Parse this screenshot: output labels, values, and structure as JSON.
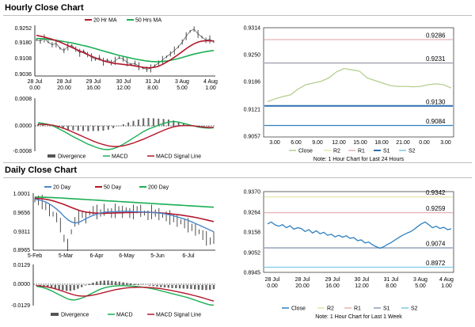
{
  "sections": {
    "hourly_title": "Hourly Close Chart",
    "daily_title": "Daily Close Chart"
  },
  "colors": {
    "ma_red": "#b3172b",
    "ma_green": "#1aaf54",
    "blue20": "#4a86c8",
    "close_light_green": "#b5cf8f",
    "close_blue": "#2e80c0",
    "r2": "#e6e6b0",
    "r1": "#e7b2b2",
    "s1": "#2f6fb0",
    "s2": "#7ec9e6",
    "midline": "#8a9bb5"
  },
  "chart_data": [
    {
      "id": "hourly_price",
      "type": "line",
      "legend": [
        "20 Hr MA",
        "50 Hrs MA"
      ],
      "yticks": [
        "0.9252",
        "0.9180",
        "0.9108",
        "0.9036"
      ],
      "ylim": [
        0.9036,
        0.9252
      ],
      "xticks": [
        [
          "28 Jul",
          "0.00"
        ],
        [
          "28 Jul",
          "20.00"
        ],
        [
          "29 Jul",
          "16.00"
        ],
        [
          "30 Jul",
          "12.00"
        ],
        [
          "31 Jul",
          "8.00"
        ],
        [
          "3 Aug",
          "5.00"
        ],
        [
          "4 Aug",
          "1.00"
        ]
      ],
      "price": [
        0.9198,
        0.9192,
        0.9204,
        0.9188,
        0.9176,
        0.9182,
        0.916,
        0.915,
        0.9168,
        0.9172,
        0.9156,
        0.914,
        0.9148,
        0.9132,
        0.912,
        0.911,
        0.9118,
        0.91,
        0.9108,
        0.9096,
        0.9104,
        0.9118,
        0.9112,
        0.9098,
        0.9088,
        0.9092,
        0.908,
        0.9072,
        0.9066,
        0.907,
        0.9082,
        0.9094,
        0.9108,
        0.9122,
        0.9135,
        0.915,
        0.9166,
        0.9188,
        0.9214,
        0.9236,
        0.9246,
        0.9224,
        0.921,
        0.9196,
        0.92,
        0.919
      ],
      "ma20": [
        0.9218,
        0.9214,
        0.921,
        0.9205,
        0.92,
        0.9194,
        0.9188,
        0.918,
        0.9172,
        0.9164,
        0.9156,
        0.9148,
        0.914,
        0.9132,
        0.9124,
        0.9117,
        0.911,
        0.9104,
        0.9099,
        0.9095,
        0.9092,
        0.909,
        0.9088,
        0.9086,
        0.9084,
        0.9081,
        0.9078,
        0.9075,
        0.9073,
        0.9073,
        0.9075,
        0.908,
        0.9088,
        0.9098,
        0.9108,
        0.912,
        0.9132,
        0.9145,
        0.9158,
        0.917,
        0.918,
        0.9188,
        0.9192,
        0.9194,
        0.9194,
        0.9192
      ],
      "ma50": [
        0.9204,
        0.9203,
        0.9202,
        0.92,
        0.9198,
        0.9196,
        0.9193,
        0.919,
        0.9187,
        0.9184,
        0.918,
        0.9176,
        0.9172,
        0.9168,
        0.9163,
        0.9158,
        0.9153,
        0.9148,
        0.9143,
        0.9138,
        0.9133,
        0.9128,
        0.9124,
        0.912,
        0.9116,
        0.9112,
        0.9109,
        0.9106,
        0.9103,
        0.9101,
        0.91,
        0.91,
        0.9101,
        0.9103,
        0.9106,
        0.911,
        0.9114,
        0.9119,
        0.9124,
        0.9129,
        0.9134,
        0.9138,
        0.9142,
        0.9145,
        0.9148,
        0.915
      ]
    },
    {
      "id": "hourly_macd",
      "type": "line",
      "legend": [
        "Divergence",
        "MACD",
        "MACD Signal Line"
      ],
      "yticks": [
        "0.0008",
        "0.0000",
        "-0.0008"
      ],
      "ylim": [
        -0.0008,
        0.0008
      ],
      "macd": [
        0.0001,
        8e-05,
        5e-05,
        0.0,
        -8e-05,
        -0.00016,
        -0.00025,
        -0.00034,
        -0.00042,
        -0.0005,
        -0.00058,
        -0.00064,
        -0.0007,
        -0.00074,
        -0.00075,
        -0.00072,
        -0.00066,
        -0.00058,
        -0.00048,
        -0.00038,
        -0.00028,
        -0.00018,
        -0.0001,
        -4e-05,
        2e-05,
        8e-05,
        0.00012,
        0.00014,
        0.00012,
        8e-05,
        4e-05,
        0.0,
        -4e-05,
        -6e-05,
        -7e-05,
        -6e-05
      ],
      "signal": [
        5e-05,
        5e-05,
        4e-05,
        2e-05,
        -2e-05,
        -7e-05,
        -0.00013,
        -0.0002,
        -0.00027,
        -0.00034,
        -0.00041,
        -0.00048,
        -0.00054,
        -0.00059,
        -0.00063,
        -0.00065,
        -0.00065,
        -0.00063,
        -0.00059,
        -0.00054,
        -0.00048,
        -0.00042,
        -0.00035,
        -0.00028,
        -0.00021,
        -0.00014,
        -8e-05,
        -3e-05,
        0.0,
        1e-05,
        1e-05,
        0.0,
        -2e-05,
        -4e-05,
        -5e-05,
        -5e-05
      ],
      "divergence": [
        5e-05,
        3e-05,
        1e-05,
        -2e-05,
        -6e-05,
        -9e-05,
        -0.00012,
        -0.00014,
        -0.00015,
        -0.00016,
        -0.00017,
        -0.00016,
        -0.00016,
        -0.00015,
        -0.00012,
        -7e-05,
        -1e-05,
        5e-05,
        0.00011,
        0.00016,
        0.0002,
        0.00024,
        0.00025,
        0.00024,
        0.00023,
        0.00022,
        0.0002,
        0.00017,
        0.00012,
        7e-05,
        3e-05,
        0.0,
        -2e-05,
        -2e-05,
        -2e-05,
        -1e-05
      ]
    },
    {
      "id": "hourly_levels",
      "type": "line",
      "yticks": [
        "0.9314",
        "0.9250",
        "0.9186",
        "0.9121",
        "0.9057"
      ],
      "ylim": [
        0.9057,
        0.9314
      ],
      "xticks": [
        "3.00",
        "6.00",
        "9.00",
        "12.00",
        "15.00",
        "18.00",
        "21.00",
        "0.00",
        "3.00"
      ],
      "close": [
        0.914,
        0.9147,
        0.9152,
        0.9156,
        0.917,
        0.918,
        0.9184,
        0.9188,
        0.9196,
        0.921,
        0.9218,
        0.9215,
        0.9212,
        0.9196,
        0.919,
        0.9184,
        0.9178,
        0.9176,
        0.9176,
        0.9175,
        0.9176,
        0.918,
        0.9182,
        0.918,
        0.9172
      ],
      "levels": [
        {
          "name": "R2",
          "value": 0.9286,
          "label": "0.9286"
        },
        {
          "name": "R1",
          "value": 0.9231,
          "label": "0.9231"
        },
        {
          "name": "S1",
          "value": 0.913,
          "label": "0.9130"
        },
        {
          "name": "S2",
          "value": 0.9084,
          "label": "0.9084"
        }
      ],
      "legend": [
        "Close",
        "R2",
        "R1",
        "S1",
        "S2"
      ],
      "note": "Note: 1 Hour Chart for Last 24 Hours"
    },
    {
      "id": "daily_price",
      "type": "line",
      "legend": [
        "20 Day",
        "50 Day",
        "200 Day"
      ],
      "yticks": [
        "1.0001",
        "0.9656",
        "0.9311",
        "0.8965"
      ],
      "ylim": [
        0.8965,
        1.0001
      ],
      "xticks": [
        "5-Feb",
        "5-Mar",
        "6-Apr",
        "6-May",
        "5-Jun",
        "6-Jul"
      ],
      "price": [
        0.988,
        0.987,
        0.984,
        0.976,
        0.969,
        0.962,
        0.956,
        0.942,
        0.918,
        0.906,
        0.93,
        0.948,
        0.956,
        0.962,
        0.956,
        0.964,
        0.968,
        0.966,
        0.964,
        0.97,
        0.968,
        0.964,
        0.968,
        0.97,
        0.966,
        0.97,
        0.964,
        0.966,
        0.97,
        0.968,
        0.964,
        0.96,
        0.966,
        0.964,
        0.962,
        0.96,
        0.958,
        0.956,
        0.954,
        0.95,
        0.948,
        0.945,
        0.942,
        0.938,
        0.934,
        0.93,
        0.924,
        0.918,
        0.913,
        0.919
      ],
      "d20": [
        0.989,
        0.988,
        0.9865,
        0.984,
        0.9805,
        0.976,
        0.971,
        0.965,
        0.958,
        0.952,
        0.948,
        0.946,
        0.947,
        0.95,
        0.954,
        0.957,
        0.96,
        0.962,
        0.964,
        0.9655,
        0.966,
        0.9665,
        0.9665,
        0.9668,
        0.967,
        0.9672,
        0.967,
        0.9666,
        0.9664,
        0.9662,
        0.966,
        0.9655,
        0.965,
        0.9645,
        0.964,
        0.9632,
        0.962,
        0.9605,
        0.959,
        0.957,
        0.955,
        0.953,
        0.9505,
        0.948,
        0.945,
        0.942,
        0.939,
        0.936,
        0.933,
        0.93
      ],
      "d50": [
        0.991,
        0.9905,
        0.99,
        0.989,
        0.9878,
        0.9862,
        0.9842,
        0.982,
        0.9795,
        0.977,
        0.9742,
        0.9716,
        0.9692,
        0.9672,
        0.9658,
        0.9648,
        0.9642,
        0.9638,
        0.9636,
        0.9636,
        0.9638,
        0.964,
        0.9642,
        0.9644,
        0.9646,
        0.9648,
        0.965,
        0.9652,
        0.9654,
        0.9655,
        0.9655,
        0.9654,
        0.9652,
        0.9648,
        0.9644,
        0.964,
        0.9634,
        0.9628,
        0.962,
        0.9612,
        0.9604,
        0.9594,
        0.9584,
        0.9572,
        0.956,
        0.9546,
        0.9532,
        0.9516,
        0.95,
        0.9484
      ],
      "d200": [
        0.993,
        0.993,
        0.9928,
        0.9926,
        0.9924,
        0.9921,
        0.9918,
        0.9914,
        0.991,
        0.9906,
        0.9902,
        0.9898,
        0.9894,
        0.989,
        0.9886,
        0.9882,
        0.9878,
        0.9874,
        0.987,
        0.9866,
        0.9862,
        0.9858,
        0.9854,
        0.985,
        0.9846,
        0.9842,
        0.9838,
        0.9834,
        0.983,
        0.9826,
        0.9822,
        0.9818,
        0.9814,
        0.981,
        0.9806,
        0.9802,
        0.9798,
        0.9794,
        0.979,
        0.9786,
        0.9782,
        0.9778,
        0.9774,
        0.977,
        0.9766,
        0.9762,
        0.9758,
        0.9754,
        0.975,
        0.9746
      ]
    },
    {
      "id": "daily_macd",
      "type": "line",
      "legend": [
        "Divergence",
        "MACD",
        "MACD Signal Line"
      ],
      "yticks": [
        "0.0129",
        "0.0000",
        "-0.0129"
      ],
      "ylim": [
        -0.0129,
        0.0129
      ],
      "macd": [
        -0.0008,
        -0.0012,
        -0.0018,
        -0.0026,
        -0.0036,
        -0.0048,
        -0.006,
        -0.0072,
        -0.0084,
        -0.0092,
        -0.0094,
        -0.009,
        -0.0082,
        -0.0072,
        -0.006,
        -0.0048,
        -0.0036,
        -0.0026,
        -0.0018,
        -0.0012,
        -0.0008,
        -0.0006,
        -0.0004,
        -0.0004,
        -0.0005,
        -0.0006,
        -0.0008,
        -0.001,
        -0.0013,
        -0.0016,
        -0.002,
        -0.0025,
        -0.003,
        -0.0036,
        -0.0042,
        -0.0048,
        -0.0054,
        -0.006,
        -0.0066,
        -0.0072,
        -0.0078,
        -0.0086,
        -0.0094,
        -0.0102,
        -0.011,
        -0.0118,
        -0.0124,
        -0.0126
      ],
      "signal": [
        -0.0004,
        -0.0006,
        -0.0009,
        -0.0013,
        -0.0018,
        -0.0024,
        -0.0031,
        -0.0039,
        -0.0047,
        -0.0055,
        -0.0062,
        -0.0067,
        -0.0069,
        -0.0069,
        -0.0067,
        -0.0063,
        -0.0058,
        -0.0052,
        -0.0046,
        -0.004,
        -0.0034,
        -0.0029,
        -0.0025,
        -0.0021,
        -0.0018,
        -0.0016,
        -0.0015,
        -0.0014,
        -0.0014,
        -0.0015,
        -0.0016,
        -0.0018,
        -0.002,
        -0.0023,
        -0.0027,
        -0.0031,
        -0.0035,
        -0.004,
        -0.0045,
        -0.005,
        -0.0055,
        -0.0061,
        -0.0067,
        -0.0073,
        -0.008,
        -0.0087,
        -0.0094,
        -0.01
      ],
      "divergence": [
        -0.0004,
        -0.0006,
        -0.0009,
        -0.0013,
        -0.0018,
        -0.0024,
        -0.0029,
        -0.0033,
        -0.0037,
        -0.0037,
        -0.0032,
        -0.0023,
        -0.0013,
        -0.0003,
        0.0007,
        0.0015,
        0.0022,
        0.0026,
        0.0028,
        0.0028,
        0.0026,
        0.0023,
        0.0021,
        0.0017,
        0.0013,
        0.001,
        0.0007,
        0.0004,
        0.0001,
        -0.0001,
        -0.0004,
        -0.0007,
        -0.001,
        -0.0013,
        -0.0015,
        -0.0017,
        -0.0019,
        -0.002,
        -0.0021,
        -0.0022,
        -0.0023,
        -0.0025,
        -0.0027,
        -0.0029,
        -0.003,
        -0.0031,
        -0.003,
        -0.0026
      ]
    },
    {
      "id": "daily_levels",
      "type": "line",
      "yticks": [
        "0.9370",
        "0.9264",
        "0.9158",
        "0.9052",
        "0.8945"
      ],
      "ylim": [
        0.8945,
        0.937
      ],
      "xticks": [
        [
          "28 Jul",
          "0.00"
        ],
        [
          "28 Jul",
          "20.00"
        ],
        [
          "29 Jul",
          "16.00"
        ],
        [
          "30 Jul",
          "12.00"
        ],
        [
          "31 Jul",
          "8.00"
        ],
        [
          "3 Aug",
          "5.00"
        ],
        [
          "4 Aug",
          "1.00"
        ]
      ],
      "close": [
        0.92,
        0.921,
        0.9195,
        0.9188,
        0.9196,
        0.918,
        0.919,
        0.9172,
        0.918,
        0.9176,
        0.916,
        0.917,
        0.9152,
        0.9164,
        0.9148,
        0.9156,
        0.914,
        0.9146,
        0.9132,
        0.914,
        0.913,
        0.9138,
        0.9124,
        0.9128,
        0.9112,
        0.9116,
        0.91,
        0.9104,
        0.909,
        0.908,
        0.9072,
        0.908,
        0.9092,
        0.9102,
        0.9116,
        0.9128,
        0.914,
        0.915,
        0.9158,
        0.917,
        0.9186,
        0.92,
        0.921,
        0.9196,
        0.918,
        0.9188,
        0.9176,
        0.9182,
        0.917,
        0.9174
      ],
      "levels": [
        {
          "name": "R2",
          "value": 0.9342,
          "label": "0.9342"
        },
        {
          "name": "R1",
          "value": 0.9259,
          "label": "0.9259"
        },
        {
          "name": "S1",
          "value": 0.9074,
          "label": "0.9074"
        },
        {
          "name": "S2",
          "value": 0.8972,
          "label": "0.8972"
        }
      ],
      "legend": [
        "Close",
        "R2",
        "R1",
        "S1",
        "S2"
      ],
      "note": "Note: 1 Hour Chart for Last 1 Week"
    }
  ]
}
